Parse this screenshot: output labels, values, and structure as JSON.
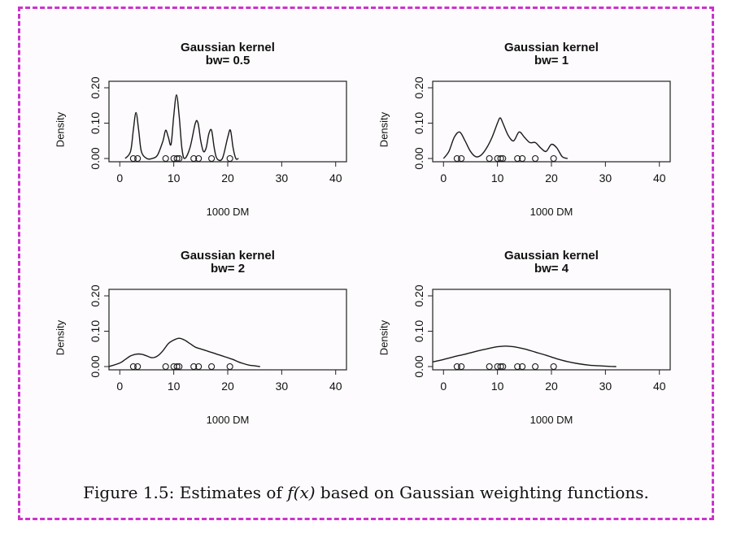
{
  "caption": {
    "label": "Figure 1.5:",
    "before": "Estimates of",
    "math": "f(x)",
    "after": "based on Gaussian weighting functions."
  },
  "chart_data": [
    {
      "type": "line",
      "title": "Gaussian kernel",
      "subtitle": "bw= 0.5",
      "xlabel": "1000 DM",
      "ylabel": "Density",
      "xlim": [
        -2,
        42
      ],
      "ylim": [
        0,
        0.2
      ],
      "xticks": [
        0,
        10,
        20,
        30,
        40
      ],
      "yticks": [
        0.0,
        0.1,
        0.2
      ],
      "ytick_labels": [
        "0.00",
        "0.10",
        "0.20"
      ],
      "x": [
        1.0,
        2.0,
        2.5,
        3.0,
        3.5,
        4.0,
        5.0,
        6.0,
        7.0,
        8.0,
        8.5,
        9.0,
        9.5,
        10.0,
        10.5,
        11.0,
        11.5,
        12.0,
        13.0,
        14.0,
        14.5,
        15.0,
        15.5,
        16.0,
        16.5,
        17.0,
        17.5,
        18.0,
        19.0,
        20.0,
        20.5,
        21.0,
        21.5,
        22.0
      ],
      "y": [
        0.0,
        0.02,
        0.08,
        0.13,
        0.08,
        0.02,
        0.0,
        0.0,
        0.01,
        0.05,
        0.08,
        0.06,
        0.04,
        0.12,
        0.18,
        0.12,
        0.03,
        0.0,
        0.03,
        0.1,
        0.1,
        0.05,
        0.02,
        0.03,
        0.07,
        0.08,
        0.03,
        0.0,
        0.0,
        0.06,
        0.08,
        0.03,
        0.0,
        0.0
      ],
      "rug": [
        2.5,
        3.3,
        8.5,
        10.0,
        10.6,
        11.0,
        13.7,
        14.6,
        17.0,
        20.4
      ]
    },
    {
      "type": "line",
      "title": "Gaussian kernel",
      "subtitle": "bw= 1",
      "xlabel": "1000 DM",
      "ylabel": "Density",
      "xlim": [
        -2,
        42
      ],
      "ylim": [
        0,
        0.2
      ],
      "xticks": [
        0,
        10,
        20,
        30,
        40
      ],
      "yticks": [
        0.0,
        0.1,
        0.2
      ],
      "ytick_labels": [
        "0.00",
        "0.10",
        "0.20"
      ],
      "x": [
        0.0,
        1.0,
        2.0,
        3.0,
        4.0,
        5.0,
        6.0,
        7.0,
        8.0,
        9.0,
        10.0,
        10.5,
        11.0,
        12.0,
        13.0,
        14.0,
        15.0,
        16.0,
        17.0,
        18.0,
        19.0,
        20.0,
        21.0,
        22.0,
        23.0
      ],
      "y": [
        0.0,
        0.02,
        0.06,
        0.075,
        0.05,
        0.02,
        0.005,
        0.01,
        0.03,
        0.06,
        0.1,
        0.115,
        0.1,
        0.065,
        0.05,
        0.075,
        0.06,
        0.045,
        0.045,
        0.03,
        0.02,
        0.04,
        0.03,
        0.005,
        0.0
      ],
      "rug": [
        2.5,
        3.3,
        8.5,
        10.0,
        10.6,
        11.0,
        13.7,
        14.6,
        17.0,
        20.4
      ]
    },
    {
      "type": "line",
      "title": "Gaussian kernel",
      "subtitle": "bw= 2",
      "xlabel": "1000 DM",
      "ylabel": "Density",
      "xlim": [
        -2,
        42
      ],
      "ylim": [
        0,
        0.2
      ],
      "xticks": [
        0,
        10,
        20,
        30,
        40
      ],
      "yticks": [
        0.0,
        0.1,
        0.2
      ],
      "ytick_labels": [
        "0.00",
        "0.10",
        "0.20"
      ],
      "x": [
        -2.0,
        0.0,
        1.0,
        2.0,
        3.0,
        4.0,
        5.0,
        6.0,
        7.0,
        8.0,
        9.0,
        10.0,
        11.0,
        12.0,
        13.0,
        14.0,
        15.0,
        16.0,
        17.0,
        18.0,
        19.0,
        20.0,
        21.0,
        22.0,
        23.0,
        24.0,
        25.0,
        26.0
      ],
      "y": [
        0.0,
        0.01,
        0.02,
        0.03,
        0.035,
        0.035,
        0.03,
        0.025,
        0.03,
        0.045,
        0.065,
        0.075,
        0.08,
        0.075,
        0.065,
        0.055,
        0.05,
        0.045,
        0.04,
        0.035,
        0.03,
        0.025,
        0.02,
        0.013,
        0.008,
        0.004,
        0.002,
        0.0
      ],
      "rug": [
        2.5,
        3.3,
        8.5,
        10.0,
        10.6,
        11.0,
        13.7,
        14.6,
        17.0,
        20.4
      ]
    },
    {
      "type": "line",
      "title": "Gaussian kernel",
      "subtitle": "bw= 4",
      "xlabel": "1000 DM",
      "ylabel": "Density",
      "xlim": [
        -2,
        42
      ],
      "ylim": [
        0,
        0.2
      ],
      "xticks": [
        0,
        10,
        20,
        30,
        40
      ],
      "yticks": [
        0.0,
        0.1,
        0.2
      ],
      "ytick_labels": [
        "0.00",
        "0.10",
        "0.20"
      ],
      "x": [
        -2.0,
        0.0,
        2.0,
        4.0,
        6.0,
        8.0,
        10.0,
        11.5,
        13.0,
        15.0,
        17.0,
        19.0,
        21.0,
        23.0,
        25.0,
        27.0,
        29.0,
        31.0,
        32.0
      ],
      "y": [
        0.013,
        0.02,
        0.028,
        0.035,
        0.043,
        0.05,
        0.056,
        0.058,
        0.056,
        0.05,
        0.041,
        0.032,
        0.022,
        0.014,
        0.008,
        0.004,
        0.002,
        0.0005,
        0.0
      ],
      "rug": [
        2.5,
        3.3,
        8.5,
        10.0,
        10.6,
        11.0,
        13.7,
        14.6,
        17.0,
        20.4
      ]
    }
  ]
}
